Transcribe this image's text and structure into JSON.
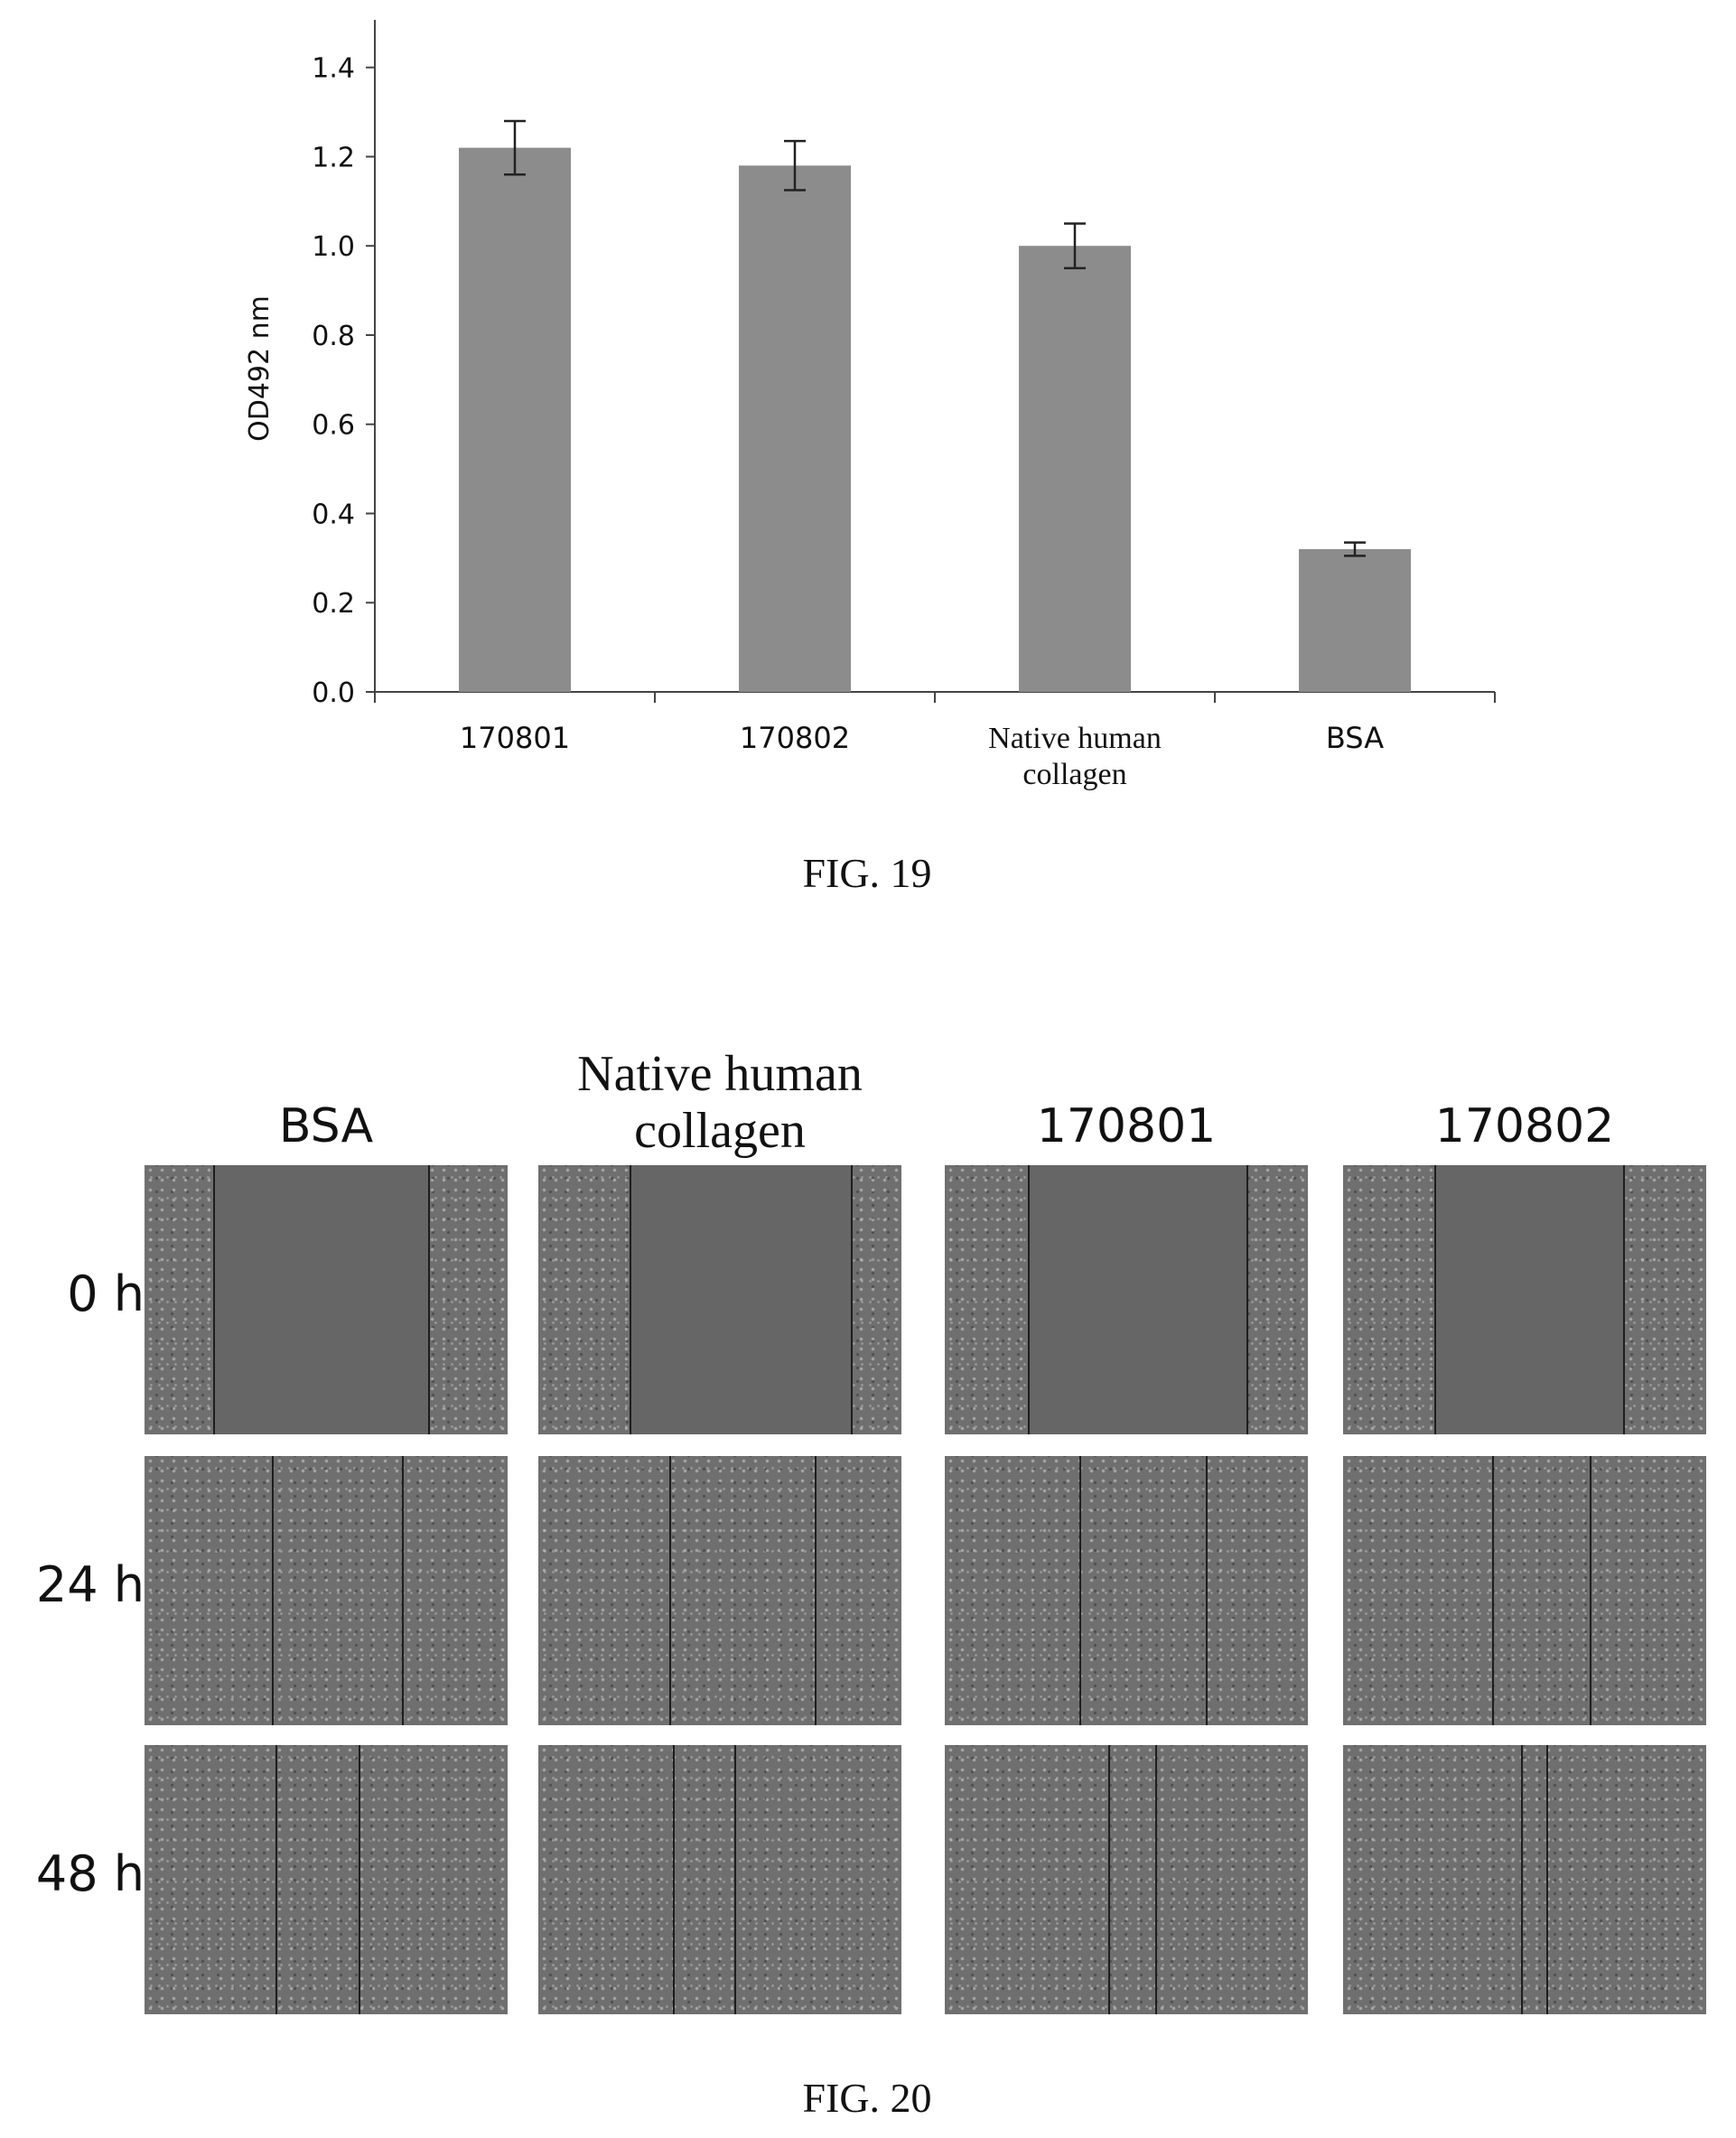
{
  "fig19": {
    "caption": "FIG. 19",
    "chart_data": {
      "type": "bar",
      "categories": [
        "170801",
        "170802",
        "Native human\ncollagen",
        "BSA"
      ],
      "values": [
        1.22,
        1.18,
        1.0,
        0.32
      ],
      "error": [
        0.06,
        0.055,
        0.05,
        0.015
      ],
      "ylabel": "OD492 nm",
      "xlabel": "",
      "ylim": [
        0.0,
        1.45
      ],
      "yticks": [
        "0.0",
        "0.2",
        "0.4",
        "0.6",
        "0.8",
        "1.0",
        "1.2",
        "1.4"
      ],
      "ytick_values": [
        0.0,
        0.2,
        0.4,
        0.6,
        0.8,
        1.0,
        1.2,
        1.4
      ],
      "bar_color": "#8c8c8c",
      "grid": false,
      "legend": "none"
    }
  },
  "fig20": {
    "caption": "FIG. 20",
    "columns": [
      {
        "label": "BSA",
        "font": "sans"
      },
      {
        "label": "Native human\ncollagen",
        "font": "serif"
      },
      {
        "label": "170801",
        "font": "sans"
      },
      {
        "label": "170802",
        "font": "sans"
      }
    ],
    "rows": [
      "0 h",
      "24 h",
      "48 h"
    ]
  }
}
